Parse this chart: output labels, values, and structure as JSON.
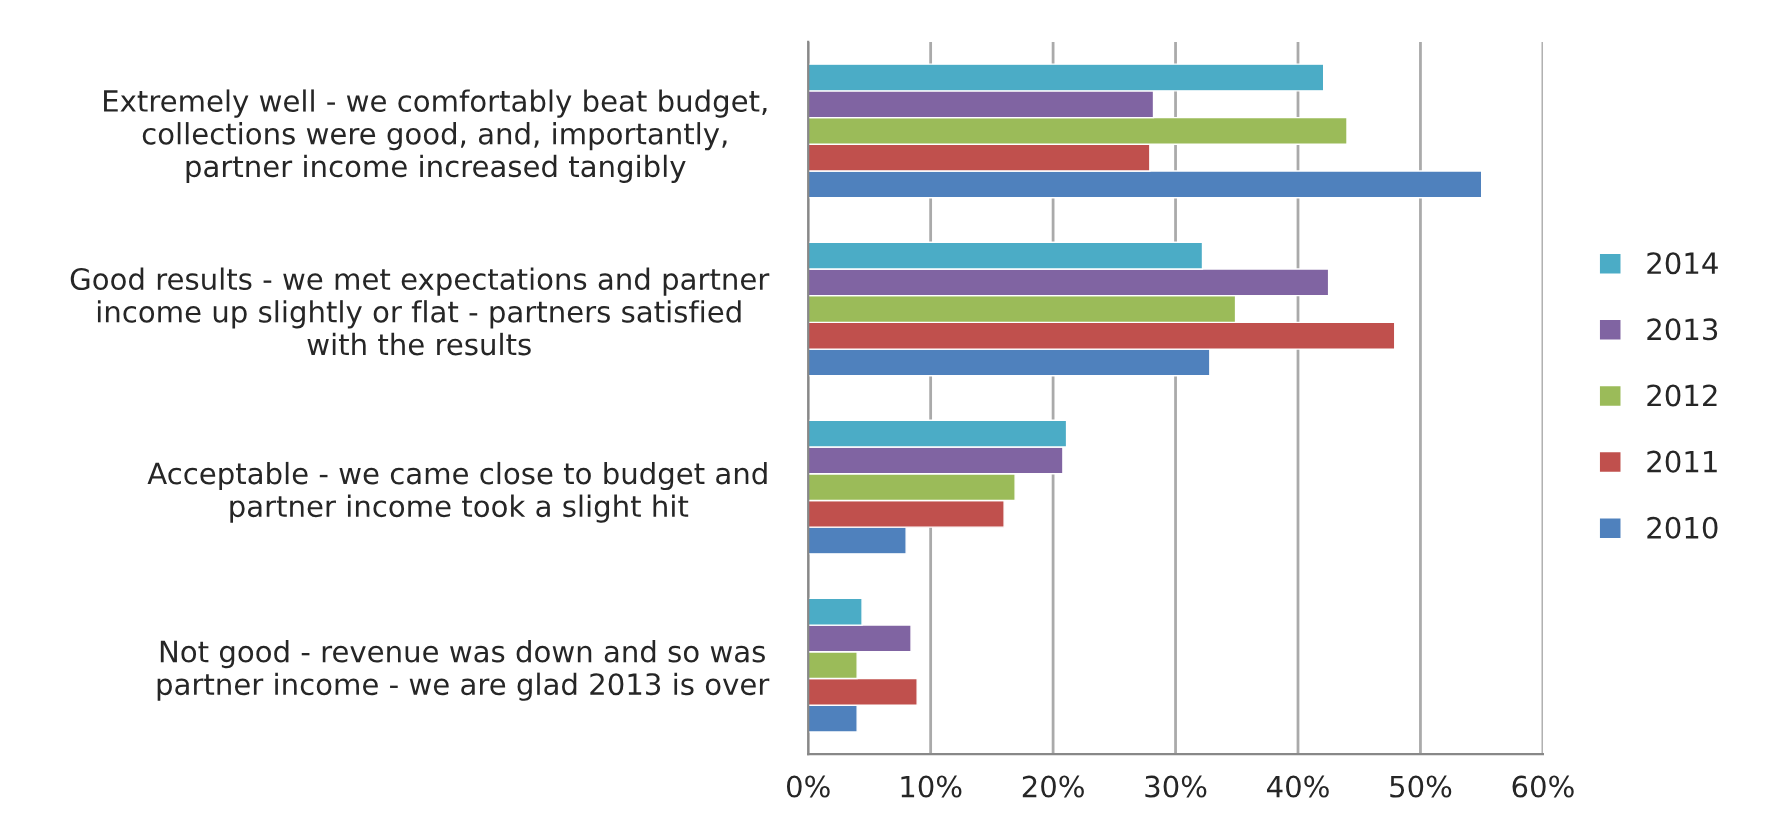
{
  "chart_data": {
    "type": "bar",
    "orientation": "horizontal",
    "categories": [
      "Extremely well - we comfortably beat budget,\ncollections were good, and, importantly,\npartner income increased tangibly",
      "Good results - we met expectations and partner\nincome up slightly or flat - partners satisfied\nwith the results",
      "Acceptable - we came close to budget and\npartner income took a slight hit",
      "Not good - revenue was down and so was\npartner income - we are glad 2013 is over"
    ],
    "series": [
      {
        "name": "2010",
        "color": "#4f81bd",
        "values": [
          55.0,
          32.8,
          8.0,
          4.0
        ]
      },
      {
        "name": "2011",
        "color": "#c0504d",
        "values": [
          27.9,
          47.9,
          16.0,
          8.9
        ]
      },
      {
        "name": "2012",
        "color": "#9bbb59",
        "values": [
          44.0,
          34.9,
          16.9,
          4.0
        ]
      },
      {
        "name": "2013",
        "color": "#8064a2",
        "values": [
          28.2,
          42.5,
          20.8,
          8.4
        ]
      },
      {
        "name": "2014",
        "color": "#4bacc6",
        "values": [
          42.1,
          32.2,
          21.1,
          4.4
        ]
      }
    ],
    "xlim": [
      0,
      60
    ],
    "xticks": [
      {
        "value": 0,
        "label": "0%"
      },
      {
        "value": 10,
        "label": "10%"
      },
      {
        "value": 20,
        "label": "20%"
      },
      {
        "value": 30,
        "label": "30%"
      },
      {
        "value": 40,
        "label": "40%"
      },
      {
        "value": 50,
        "label": "50%"
      },
      {
        "value": 60,
        "label": "60%"
      }
    ],
    "grid": "x",
    "legend": "right"
  }
}
